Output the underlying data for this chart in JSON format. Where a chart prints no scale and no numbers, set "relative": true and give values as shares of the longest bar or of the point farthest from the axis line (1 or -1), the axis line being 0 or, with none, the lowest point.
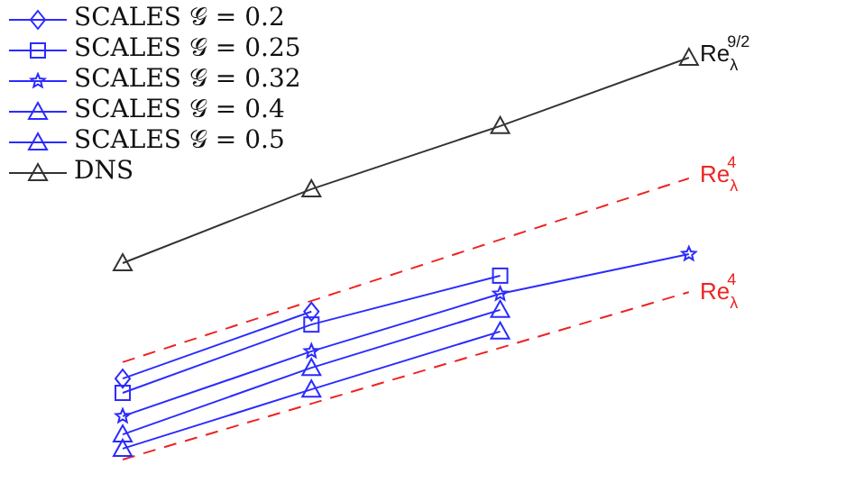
{
  "chart_data": {
    "type": "line",
    "relative": true,
    "categories": [
      null,
      null,
      null,
      null
    ],
    "legend": "top left",
    "grid": false,
    "series": [
      {
        "name": "SCALES 𝒢 = 0.2",
        "color": "#2b2bff",
        "marker": "diamond",
        "values": [
          0.258,
          0.413,
          null,
          null
        ]
      },
      {
        "name": "SCALES 𝒢 = 0.25",
        "color": "#2b2bff",
        "marker": "square",
        "values": [
          0.225,
          0.383,
          0.496,
          null
        ]
      },
      {
        "name": "SCALES 𝒢 = 0.32",
        "color": "#2b2bff",
        "marker": "star",
        "values": [
          0.171,
          0.321,
          0.454,
          0.546
        ]
      },
      {
        "name": "SCALES 𝒢 = 0.4",
        "color": "#2b2bff",
        "marker": "triangle",
        "values": [
          0.129,
          0.283,
          0.417,
          null
        ]
      },
      {
        "name": "SCALES 𝒢 = 0.5",
        "color": "#2b2bff",
        "marker": "triangle",
        "values": [
          0.096,
          0.233,
          0.367,
          null
        ]
      },
      {
        "name": "DNS",
        "color": "#333333",
        "marker": "triangle",
        "values": [
          0.525,
          0.696,
          0.842,
          1
        ]
      },
      {
        "color": "#ee2222",
        "marker": "none",
        "line_style": "dashed",
        "values": [
          0.296,
          null,
          null,
          0.721
        ]
      },
      {
        "color": "#ee2222",
        "marker": "none",
        "line_style": "dashed",
        "values": [
          0.071,
          null,
          null,
          0.458
        ]
      }
    ],
    "annotations": [
      "Re$_{λ}$$^{9/2}$",
      "Re$_{λ}$$^{4}$",
      "Re$_{λ}$$^{4}$"
    ]
  }
}
